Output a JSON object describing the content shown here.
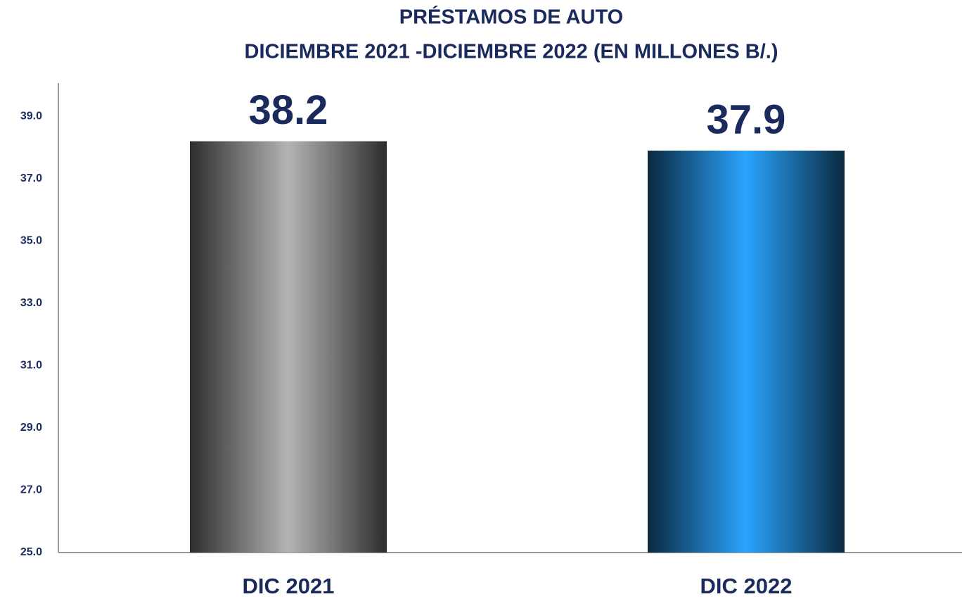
{
  "chart_data": {
    "type": "bar",
    "title": [
      "PRÉSTAMOS DE AUTO",
      "DICIEMBRE 2021 -DICIEMBRE 2022 (EN MILLONES B/.)"
    ],
    "categories": [
      "DIC 2021",
      "DIC 2022"
    ],
    "values": [
      38.2,
      37.9
    ],
    "colors": [
      "#b4b4b4",
      "#2aa4ff"
    ],
    "ylim": [
      25,
      40
    ],
    "yticks": [
      {
        "value": 25,
        "label": "25.0"
      },
      {
        "value": 27,
        "label": "27.0"
      },
      {
        "value": 29,
        "label": "29.0"
      },
      {
        "value": 31,
        "label": "31.0"
      },
      {
        "value": 33,
        "label": "33.0"
      },
      {
        "value": 35,
        "label": "35.0"
      },
      {
        "value": 37,
        "label": "37.0"
      },
      {
        "value": 39,
        "label": "39.0"
      }
    ],
    "grid": false
  }
}
